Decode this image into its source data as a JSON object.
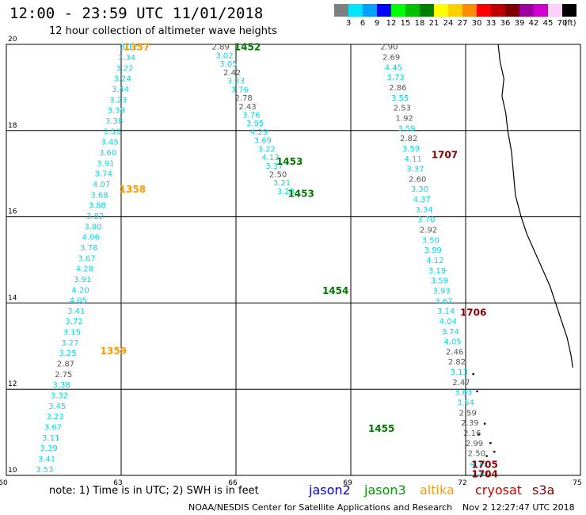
{
  "header": {
    "title": "12:00 - 23:59 UTC 11/01/2018",
    "subtitle": "12 hour collection of altimeter wave heights"
  },
  "colorbar": {
    "unit": "(ft)",
    "bins": [
      {
        "label": "3",
        "color": "#7f7f7f"
      },
      {
        "label": "6",
        "color": "#00e5ff"
      },
      {
        "label": "9",
        "color": "#00a0ff"
      },
      {
        "label": "12",
        "color": "#0000ff"
      },
      {
        "label": "15",
        "color": "#00ff00"
      },
      {
        "label": "18",
        "color": "#00c000"
      },
      {
        "label": "21",
        "color": "#008000"
      },
      {
        "label": "24",
        "color": "#ffff00"
      },
      {
        "label": "27",
        "color": "#ffd000"
      },
      {
        "label": "30",
        "color": "#ff8c00"
      },
      {
        "label": "33",
        "color": "#ff0000"
      },
      {
        "label": "36",
        "color": "#c00000"
      },
      {
        "label": "39",
        "color": "#800000"
      },
      {
        "label": "42",
        "color": "#a000a0"
      },
      {
        "label": "45",
        "color": "#d000d0"
      },
      {
        "label": "70",
        "color": "#ffd0ff"
      },
      {
        "label": "",
        "color": "#000000"
      }
    ]
  },
  "axes": {
    "x_ticks": [
      "60",
      "63",
      "66",
      "69",
      "72",
      "75"
    ],
    "y_ticks": [
      "10",
      "12",
      "14",
      "16",
      "18",
      "20"
    ]
  },
  "tracks": [
    {
      "name": "altika",
      "color": "#ff9900",
      "labels": [
        {
          "text": "1357",
          "lon": 63.4,
          "lat": 19.95
        },
        {
          "text": "1358",
          "lon": 63.3,
          "lat": 16.65
        },
        {
          "text": "1359",
          "lon": 62.8,
          "lat": 12.9
        }
      ]
    },
    {
      "name": "jason3",
      "color": "#007700",
      "labels": [
        {
          "text": "1452",
          "lon": 66.3,
          "lat": 19.95
        },
        {
          "text": "1453",
          "lon": 67.4,
          "lat": 17.3
        },
        {
          "text": "1453",
          "lon": 67.7,
          "lat": 16.55
        },
        {
          "text": "1454",
          "lon": 68.6,
          "lat": 14.3
        },
        {
          "text": "1455",
          "lon": 69.8,
          "lat": 11.1
        }
      ]
    },
    {
      "name": "cryosat",
      "color": "#880000",
      "labels": [
        {
          "text": "1707",
          "lon": 71.45,
          "lat": 17.45
        },
        {
          "text": "1706",
          "lon": 72.2,
          "lat": 13.8
        },
        {
          "text": "1705",
          "lon": 72.5,
          "lat": 10.27
        },
        {
          "text": "1704",
          "lon": 72.5,
          "lat": 10.05
        }
      ]
    }
  ],
  "swh_points": [
    {
      "t": "a",
      "lon": 63.2,
      "lat": 19.95,
      "values": [
        "3.12",
        "3.34",
        "3.22",
        "3.24",
        "3.44",
        "3.23",
        "3.39",
        "3.38",
        "3.53",
        "3.45",
        "3.60",
        "3.91",
        "3.74",
        "4.07",
        "3.68",
        "3.88",
        "3.82",
        "3.80",
        "4.06",
        "3.78",
        "3.67",
        "4.28",
        "3.91",
        "4.20",
        "4.05",
        "3.41",
        "3.72",
        "3.15",
        "3.27",
        "3.25",
        "2.87",
        "2.75",
        "3.38",
        "3.32",
        "3.45",
        "3.23",
        "3.67",
        "3.11",
        "3.39",
        "3.41",
        "3.53"
      ],
      "gray": [
        "2.87",
        "2.75"
      ],
      "lon_end": 61.0,
      "lat_end": 10.15
    },
    {
      "t": "b",
      "lon": 65.6,
      "lat": 19.95,
      "values": [
        "2.89",
        "3.02",
        "3.05",
        "2.42",
        "3.23",
        "3.76",
        "2.78",
        "2.43",
        "3.76",
        "3.95",
        "4.29",
        "3.69",
        "3.22",
        "4.13",
        "3.37",
        "2.50",
        "3.21",
        "3.23"
      ],
      "gray": [
        "2.89",
        "2.42",
        "2.78",
        "2.43",
        "2.50"
      ],
      "lon_end": 67.3,
      "lat_end": 16.6
    },
    {
      "t": "c",
      "lon": 70.0,
      "lat": 19.95,
      "values": [
        "2.90",
        "2.69",
        "4.45",
        "3.73",
        "2.86",
        "3.55",
        "2.53",
        "1.92",
        "3.59",
        "2.82",
        "3.59",
        "4.11",
        "3.37",
        "2.60",
        "3.30",
        "4.37",
        "3.34",
        "3.70",
        "2.92",
        "3.50",
        "3.99",
        "4.12",
        "3.19",
        "3.59",
        "3.93",
        "3.67",
        "3.14",
        "4.04",
        "3.74",
        "4.05",
        "2.46",
        "2.82",
        "3.13",
        "2.47",
        "3.63",
        "3.54",
        "2.59",
        "2.39",
        "2.16",
        "2.99",
        "2.50",
        "4.19",
        "1.81"
      ],
      "gray": [
        "2.90",
        "2.69",
        "2.86",
        "2.53",
        "1.92",
        "2.82",
        "2.60",
        "2.92",
        "2.46",
        "2.82",
        "2.47",
        "2.59",
        "2.39",
        "2.16",
        "2.99",
        "2.50"
      ],
      "lon_end": 72.4,
      "lat_end": 10.05
    }
  ],
  "footer": {
    "note": "note:  1) Time is in UTC;  2) SWH is in feet",
    "sats": [
      {
        "name": "jason2",
        "color": "#0000cc"
      },
      {
        "name": "jason3",
        "color": "#009900"
      },
      {
        "name": "altika",
        "color": "#ff9900"
      },
      {
        "name": "cryosat",
        "color": "#cc0000"
      },
      {
        "name": "s3a",
        "color": "#880000"
      }
    ],
    "credit": "NOAA/NESDIS Center for Satellite Applications and Research",
    "stamp": "Nov  2 12:27:47 UTC 2018"
  }
}
